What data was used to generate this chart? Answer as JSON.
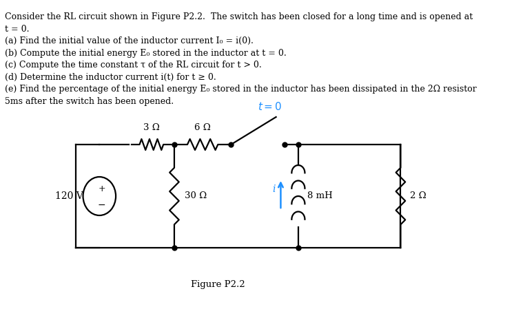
{
  "text_lines": [
    "Consider the RL circuit shown in Figure P2.2.  The switch has been closed for a long time and is opened at",
    "t = 0.",
    "(a) Find the initial value of the inductor current I₀ = i(0).",
    "(b) Compute the initial energy E₀ stored in the inductor at t = 0.",
    "(c) Compute the time constant τ of the RL circuit for t > 0.",
    "(d) Determine the inductor current i(t) for t ≥ 0.",
    "(e) Find the percentage of the initial energy E₀ stored in the inductor has been dissipated in the 2Ω resistor",
    "5ms after the switch has been opened."
  ],
  "figure_label": "Figure P2.2",
  "background_color": "#ffffff",
  "circuit_color": "#000000",
  "switch_label_color": "#1e90ff",
  "current_arrow_color": "#1e90ff",
  "text_fontsize": 9.0,
  "label_fontsize": 9.5
}
